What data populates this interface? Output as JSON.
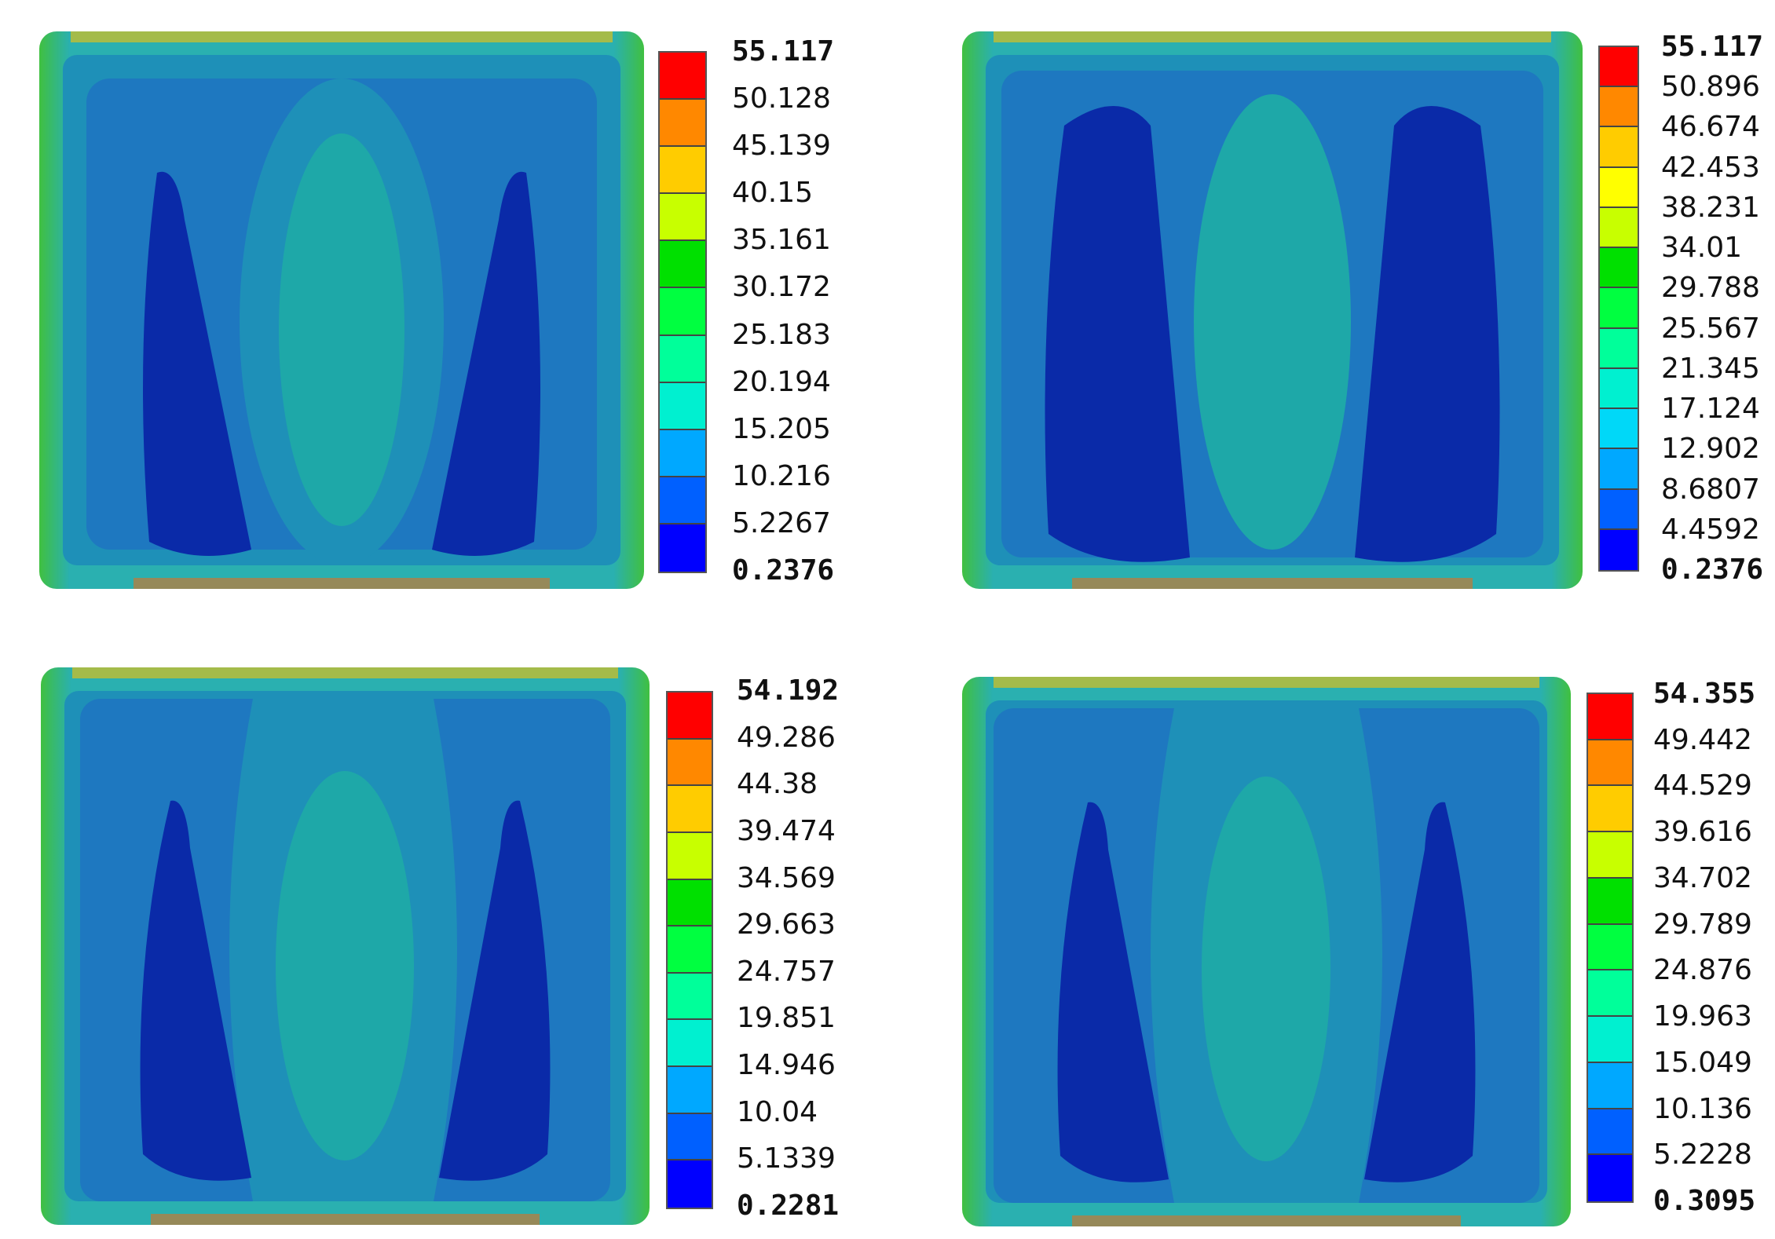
{
  "panels": [
    {
      "id": "top-left",
      "legend": [
        "55.117",
        "50.128",
        "45.139",
        "40.15",
        "35.161",
        "30.172",
        "25.183",
        "20.194",
        "15.205",
        "10.216",
        "5.2267",
        "0.2376"
      ],
      "center_level": 0.55
    },
    {
      "id": "top-right",
      "legend": [
        "55.117",
        "50.896",
        "46.674",
        "42.453",
        "38.231",
        "34.01",
        "29.788",
        "25.567",
        "21.345",
        "17.124",
        "12.902",
        "8.6807",
        "4.4592",
        "0.2376"
      ],
      "center_level": 0.45
    },
    {
      "id": "bottom-left",
      "legend": [
        "54.192",
        "49.286",
        "44.38",
        "39.474",
        "34.569",
        "29.663",
        "24.757",
        "19.851",
        "14.946",
        "10.04",
        "5.1339",
        "0.2281"
      ],
      "center_level": 0.5
    },
    {
      "id": "bottom-right",
      "legend": [
        "54.355",
        "49.442",
        "44.529",
        "39.616",
        "34.702",
        "29.789",
        "24.876",
        "19.963",
        "15.049",
        "10.136",
        "5.2228",
        "0.3095"
      ],
      "center_level": 0.5
    }
  ],
  "colormap": [
    "#ff0000",
    "#ff8800",
    "#ffcc00",
    "#ffff00",
    "#c8ff00",
    "#00e000",
    "#00ff40",
    "#00ff9a",
    "#00f0d0",
    "#00d8f8",
    "#00a8ff",
    "#0060ff",
    "#0000ff"
  ],
  "colors": {
    "field_base": "#1e78c0",
    "field_dark": "#0a2aa8",
    "field_mid": "#1e90b8",
    "field_center": "#1ea8a0",
    "edge_light": "#2ab0b0",
    "edge_green": "#40c040"
  }
}
